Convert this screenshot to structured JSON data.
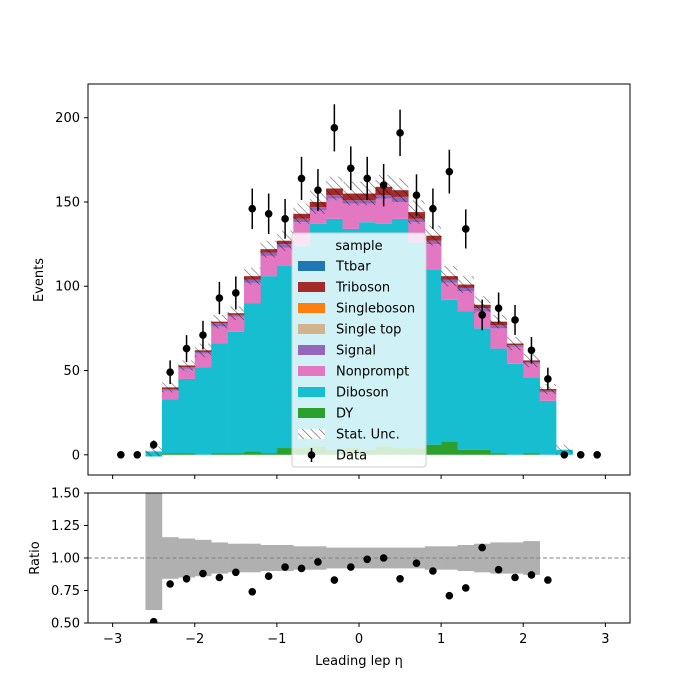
{
  "chart_data": [
    {
      "type": "bar",
      "subtype": "stacked-histogram-with-data-points",
      "title": "",
      "xlabel": "Leading lep η",
      "ylabel": "Events",
      "xlim": [
        -3.3,
        3.3
      ],
      "ylim": [
        -12,
        220
      ],
      "xticks": [
        -3,
        -2,
        -1,
        0,
        1,
        2,
        3
      ],
      "yticks": [
        0,
        50,
        100,
        150,
        200
      ],
      "bin_edges": [
        -2.6,
        -2.4,
        -2.2,
        -2.0,
        -1.8,
        -1.6,
        -1.4,
        -1.2,
        -1.0,
        -0.8,
        -0.6,
        -0.4,
        -0.2,
        0.0,
        0.2,
        0.4,
        0.6,
        0.8,
        1.0,
        1.2,
        1.4,
        1.6,
        1.8,
        2.0,
        2.2,
        2.4,
        2.6
      ],
      "grid": false,
      "legend": {
        "title": "sample",
        "placement": "center",
        "entries": [
          {
            "label": "Ttbar",
            "kind": "patch",
            "color": "#1f77b4"
          },
          {
            "label": "Triboson",
            "kind": "patch",
            "color": "#a52a2a"
          },
          {
            "label": "Singleboson",
            "kind": "patch",
            "color": "#ff7f0e"
          },
          {
            "label": "Single top",
            "kind": "patch",
            "color": "#d2b48c"
          },
          {
            "label": "Signal",
            "kind": "patch",
            "color": "#9467bd"
          },
          {
            "label": "Nonprompt",
            "kind": "patch",
            "color": "#e377c2"
          },
          {
            "label": "Diboson",
            "kind": "patch",
            "color": "#17becf"
          },
          {
            "label": "DY",
            "kind": "patch",
            "color": "#2ca02c"
          },
          {
            "label": "Stat. Unc.",
            "kind": "hatch",
            "color": "#555555"
          },
          {
            "label": "Data",
            "kind": "marker",
            "color": "#000000"
          }
        ]
      },
      "series": [
        {
          "name": "DY",
          "color": "#2ca02c",
          "values": [
            -1,
            1,
            1,
            0,
            1,
            1,
            2,
            1,
            4,
            4,
            5,
            3,
            4,
            3,
            5,
            4,
            4,
            6,
            8,
            3,
            3,
            1,
            0,
            1,
            0,
            0
          ]
        },
        {
          "name": "Diboson",
          "color": "#17becf",
          "values": [
            3,
            32,
            44,
            52,
            65,
            72,
            88,
            105,
            108,
            120,
            132,
            137,
            130,
            135,
            132,
            136,
            122,
            104,
            84,
            82,
            72,
            62,
            54,
            45,
            32,
            3
          ]
        },
        {
          "name": "Nonprompt",
          "color": "#e377c2",
          "values": [
            0,
            5,
            6,
            8,
            10,
            9,
            12,
            12,
            11,
            14,
            8,
            12,
            15,
            11,
            15,
            10,
            12,
            15,
            10,
            12,
            10,
            12,
            10,
            8,
            5,
            0
          ]
        },
        {
          "name": "Signal",
          "color": "#9467bd",
          "values": [
            0,
            1,
            1,
            1,
            2,
            1,
            2,
            2,
            2,
            2,
            2,
            2,
            2,
            2,
            2,
            3,
            2,
            2,
            2,
            2,
            2,
            2,
            1,
            1,
            1,
            0
          ]
        },
        {
          "name": "Single top",
          "color": "#d2b48c",
          "values": [
            0,
            0,
            0,
            0,
            0,
            0,
            0,
            0,
            0,
            0,
            0,
            0,
            0,
            0,
            0,
            0,
            0,
            0,
            0,
            0,
            0,
            0,
            0,
            0,
            0,
            0
          ]
        },
        {
          "name": "Singleboson",
          "color": "#ff7f0e",
          "values": [
            0,
            0,
            0,
            0,
            0,
            0,
            0,
            0,
            0,
            0,
            0,
            0,
            0,
            0,
            0,
            0,
            0,
            0,
            0,
            0,
            0,
            0,
            0,
            0,
            0,
            0
          ]
        },
        {
          "name": "Triboson",
          "color": "#a52a2a",
          "values": [
            0,
            1,
            1,
            1,
            1,
            1,
            2,
            2,
            2,
            3,
            3,
            4,
            4,
            4,
            5,
            4,
            4,
            3,
            2,
            2,
            2,
            2,
            1,
            1,
            1,
            0
          ]
        },
        {
          "name": "Ttbar",
          "color": "#1f77b4",
          "values": [
            0,
            0,
            0,
            0,
            0,
            0,
            0,
            0,
            0,
            0,
            0,
            0,
            0,
            0,
            0,
            0,
            0,
            0,
            0,
            0,
            0,
            0,
            0,
            0,
            0,
            0
          ]
        }
      ],
      "stat_unc": [
        3,
        3,
        3,
        4,
        4,
        4,
        5,
        5,
        6,
        6,
        7,
        7,
        7,
        7,
        7,
        7,
        7,
        6,
        6,
        5,
        5,
        4,
        4,
        4,
        3,
        3
      ],
      "data": {
        "name": "Data",
        "x": [
          -2.9,
          -2.7,
          -2.5,
          -2.3,
          -2.1,
          -1.9,
          -1.7,
          -1.5,
          -1.3,
          -1.1,
          -0.9,
          -0.7,
          -0.5,
          -0.3,
          -0.1,
          0.1,
          0.3,
          0.5,
          0.7,
          0.9,
          1.1,
          1.3,
          1.5,
          1.7,
          1.9,
          2.1,
          2.3,
          2.5,
          2.7,
          2.9
        ],
        "y": [
          0,
          0,
          6,
          49,
          63,
          71,
          93,
          96,
          146,
          143,
          140,
          164,
          157,
          194,
          170,
          164,
          160,
          191,
          154,
          146,
          168,
          134,
          83,
          87,
          80,
          62,
          45,
          0,
          0,
          0
        ],
        "err": [
          0,
          0,
          2.5,
          7,
          8,
          8.5,
          9.6,
          9.8,
          12,
          12,
          11.8,
          12.8,
          12.5,
          14,
          13,
          12.8,
          12.6,
          13.8,
          12.4,
          12,
          13,
          11.6,
          9.1,
          9.3,
          8.9,
          7.9,
          6.7,
          0,
          0,
          0
        ]
      }
    },
    {
      "type": "scatter",
      "subtype": "ratio",
      "xlabel": "Leading lep η",
      "ylabel": "Ratio",
      "xlim": [
        -3.3,
        3.3
      ],
      "ylim": [
        0.5,
        1.5
      ],
      "xticks": [
        -3,
        -2,
        -1,
        0,
        1,
        2,
        3
      ],
      "yticks": [
        0.5,
        0.75,
        1.0,
        1.25,
        1.5
      ],
      "ytick_labels": [
        "0.50",
        "0.75",
        "1.00",
        "1.25",
        "1.50"
      ],
      "reference_line": 1.0,
      "unc_band": {
        "color": "#b0b0b0",
        "bin_edges": [
          -2.6,
          -2.4,
          -2.2,
          -2.0,
          -1.8,
          -1.6,
          -1.4,
          -1.2,
          -1.0,
          -0.8,
          -0.6,
          -0.4,
          -0.2,
          0.0,
          0.2,
          0.4,
          0.6,
          0.8,
          1.0,
          1.2,
          1.4,
          1.6,
          1.8,
          2.0,
          2.2
        ],
        "low": [
          0.6,
          0.84,
          0.85,
          0.86,
          0.88,
          0.89,
          0.89,
          0.9,
          0.9,
          0.91,
          0.91,
          0.92,
          0.92,
          0.92,
          0.92,
          0.92,
          0.92,
          0.91,
          0.91,
          0.9,
          0.89,
          0.88,
          0.88,
          0.87
        ],
        "high": [
          1.5,
          1.16,
          1.15,
          1.14,
          1.12,
          1.11,
          1.11,
          1.1,
          1.1,
          1.09,
          1.09,
          1.08,
          1.08,
          1.08,
          1.08,
          1.08,
          1.08,
          1.09,
          1.09,
          1.1,
          1.11,
          1.12,
          1.12,
          1.13
        ]
      },
      "points": {
        "x": [
          -2.5,
          -2.3,
          -2.1,
          -1.9,
          -1.7,
          -1.5,
          -1.3,
          -1.1,
          -0.9,
          -0.7,
          -0.5,
          -0.3,
          -0.1,
          0.1,
          0.3,
          0.5,
          0.7,
          0.9,
          1.1,
          1.3,
          1.5,
          1.7,
          1.9,
          2.1,
          2.3
        ],
        "y": [
          0.51,
          0.8,
          0.84,
          0.88,
          0.85,
          0.89,
          0.74,
          0.86,
          0.93,
          0.92,
          0.97,
          0.83,
          0.93,
          0.99,
          1.0,
          0.84,
          0.96,
          0.9,
          0.71,
          0.77,
          1.08,
          0.91,
          0.85,
          0.87,
          0.83
        ]
      }
    }
  ]
}
